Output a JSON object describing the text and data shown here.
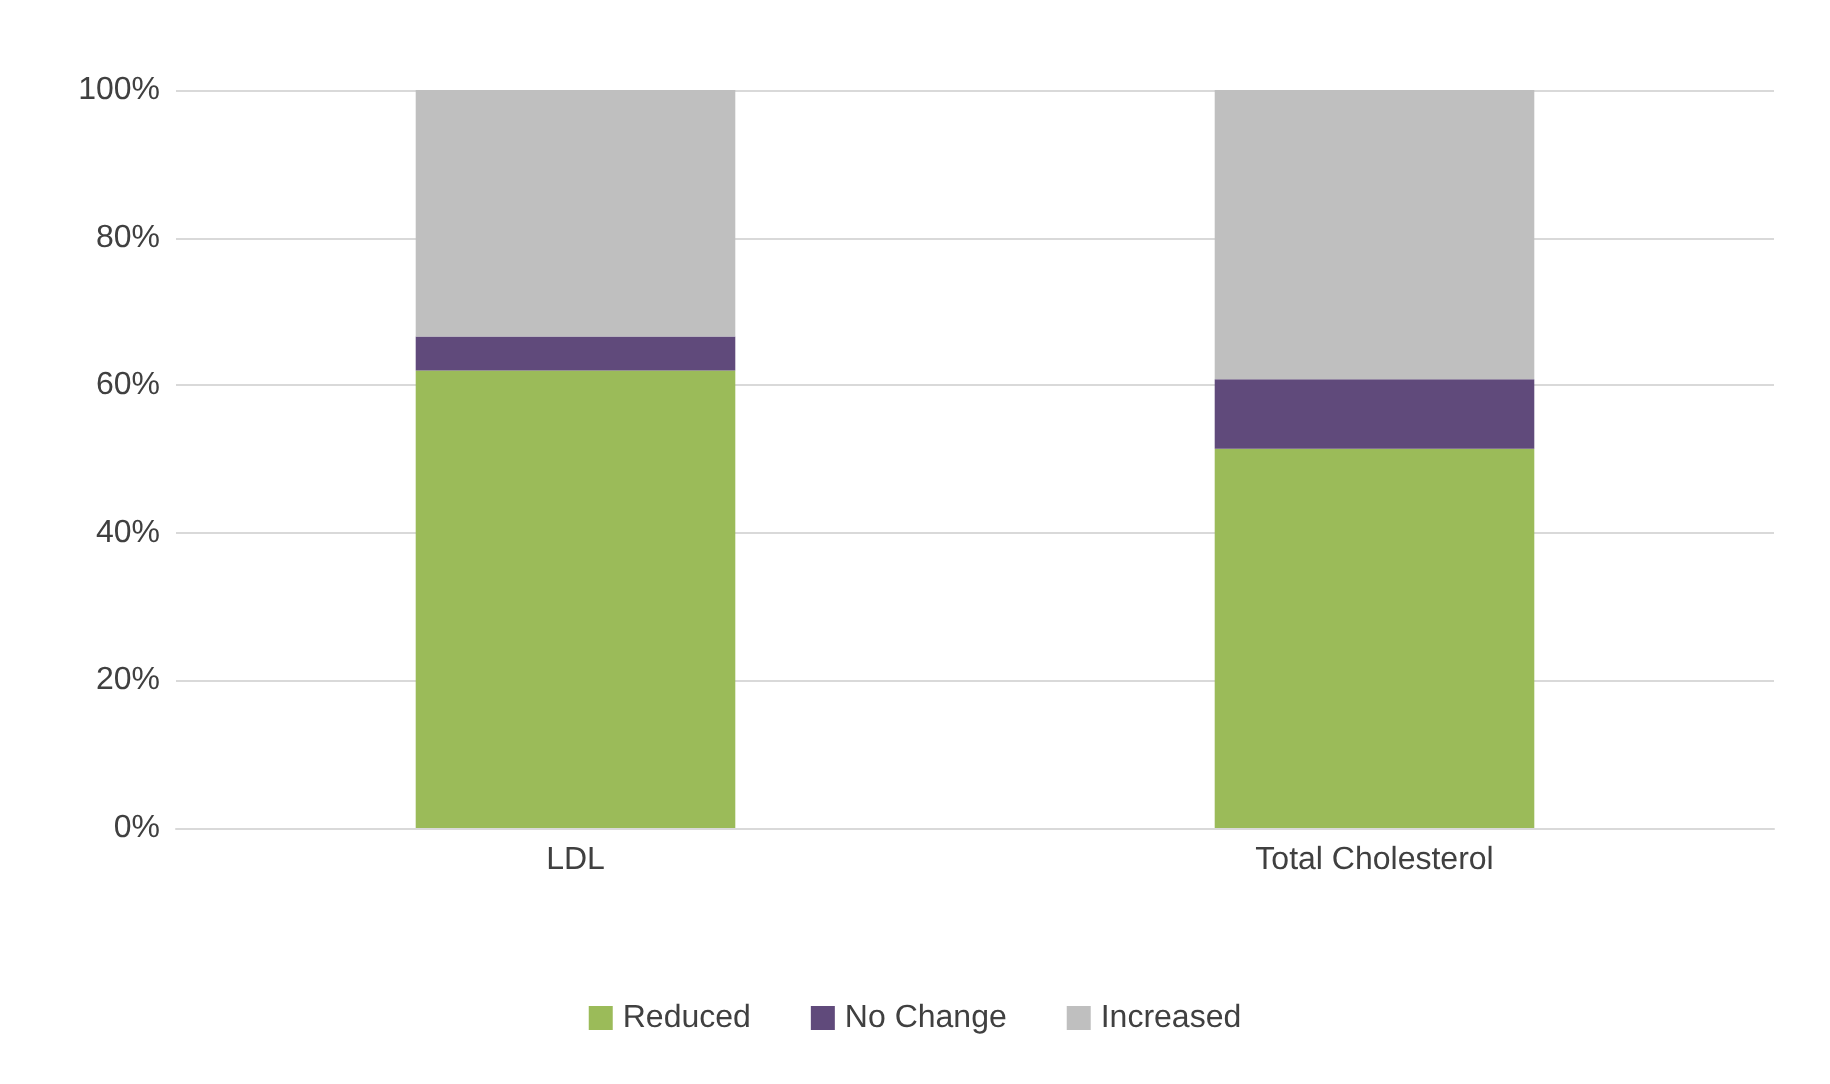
{
  "chart_data": {
    "type": "bar",
    "stacked": true,
    "categories": [
      "LDL",
      "Total Cholesterol"
    ],
    "series": [
      {
        "name": "Reduced",
        "color": "#9bbb59",
        "values": [
          62,
          51.4
        ]
      },
      {
        "name": "No Change",
        "color": "#604a7b",
        "values": [
          4.6,
          9.4
        ]
      },
      {
        "name": "Increased",
        "color": "#bfbfbf",
        "values": [
          33.4,
          39.2
        ]
      }
    ],
    "ylim": [
      0,
      100
    ],
    "yticks": [
      {
        "value": 0,
        "label": "0%"
      },
      {
        "value": 20,
        "label": "20%"
      },
      {
        "value": 40,
        "label": "40%"
      },
      {
        "value": 60,
        "label": "60%"
      },
      {
        "value": 80,
        "label": "80%"
      },
      {
        "value": 100,
        "label": "100%"
      }
    ],
    "grid": "y",
    "legend": "bottom"
  }
}
